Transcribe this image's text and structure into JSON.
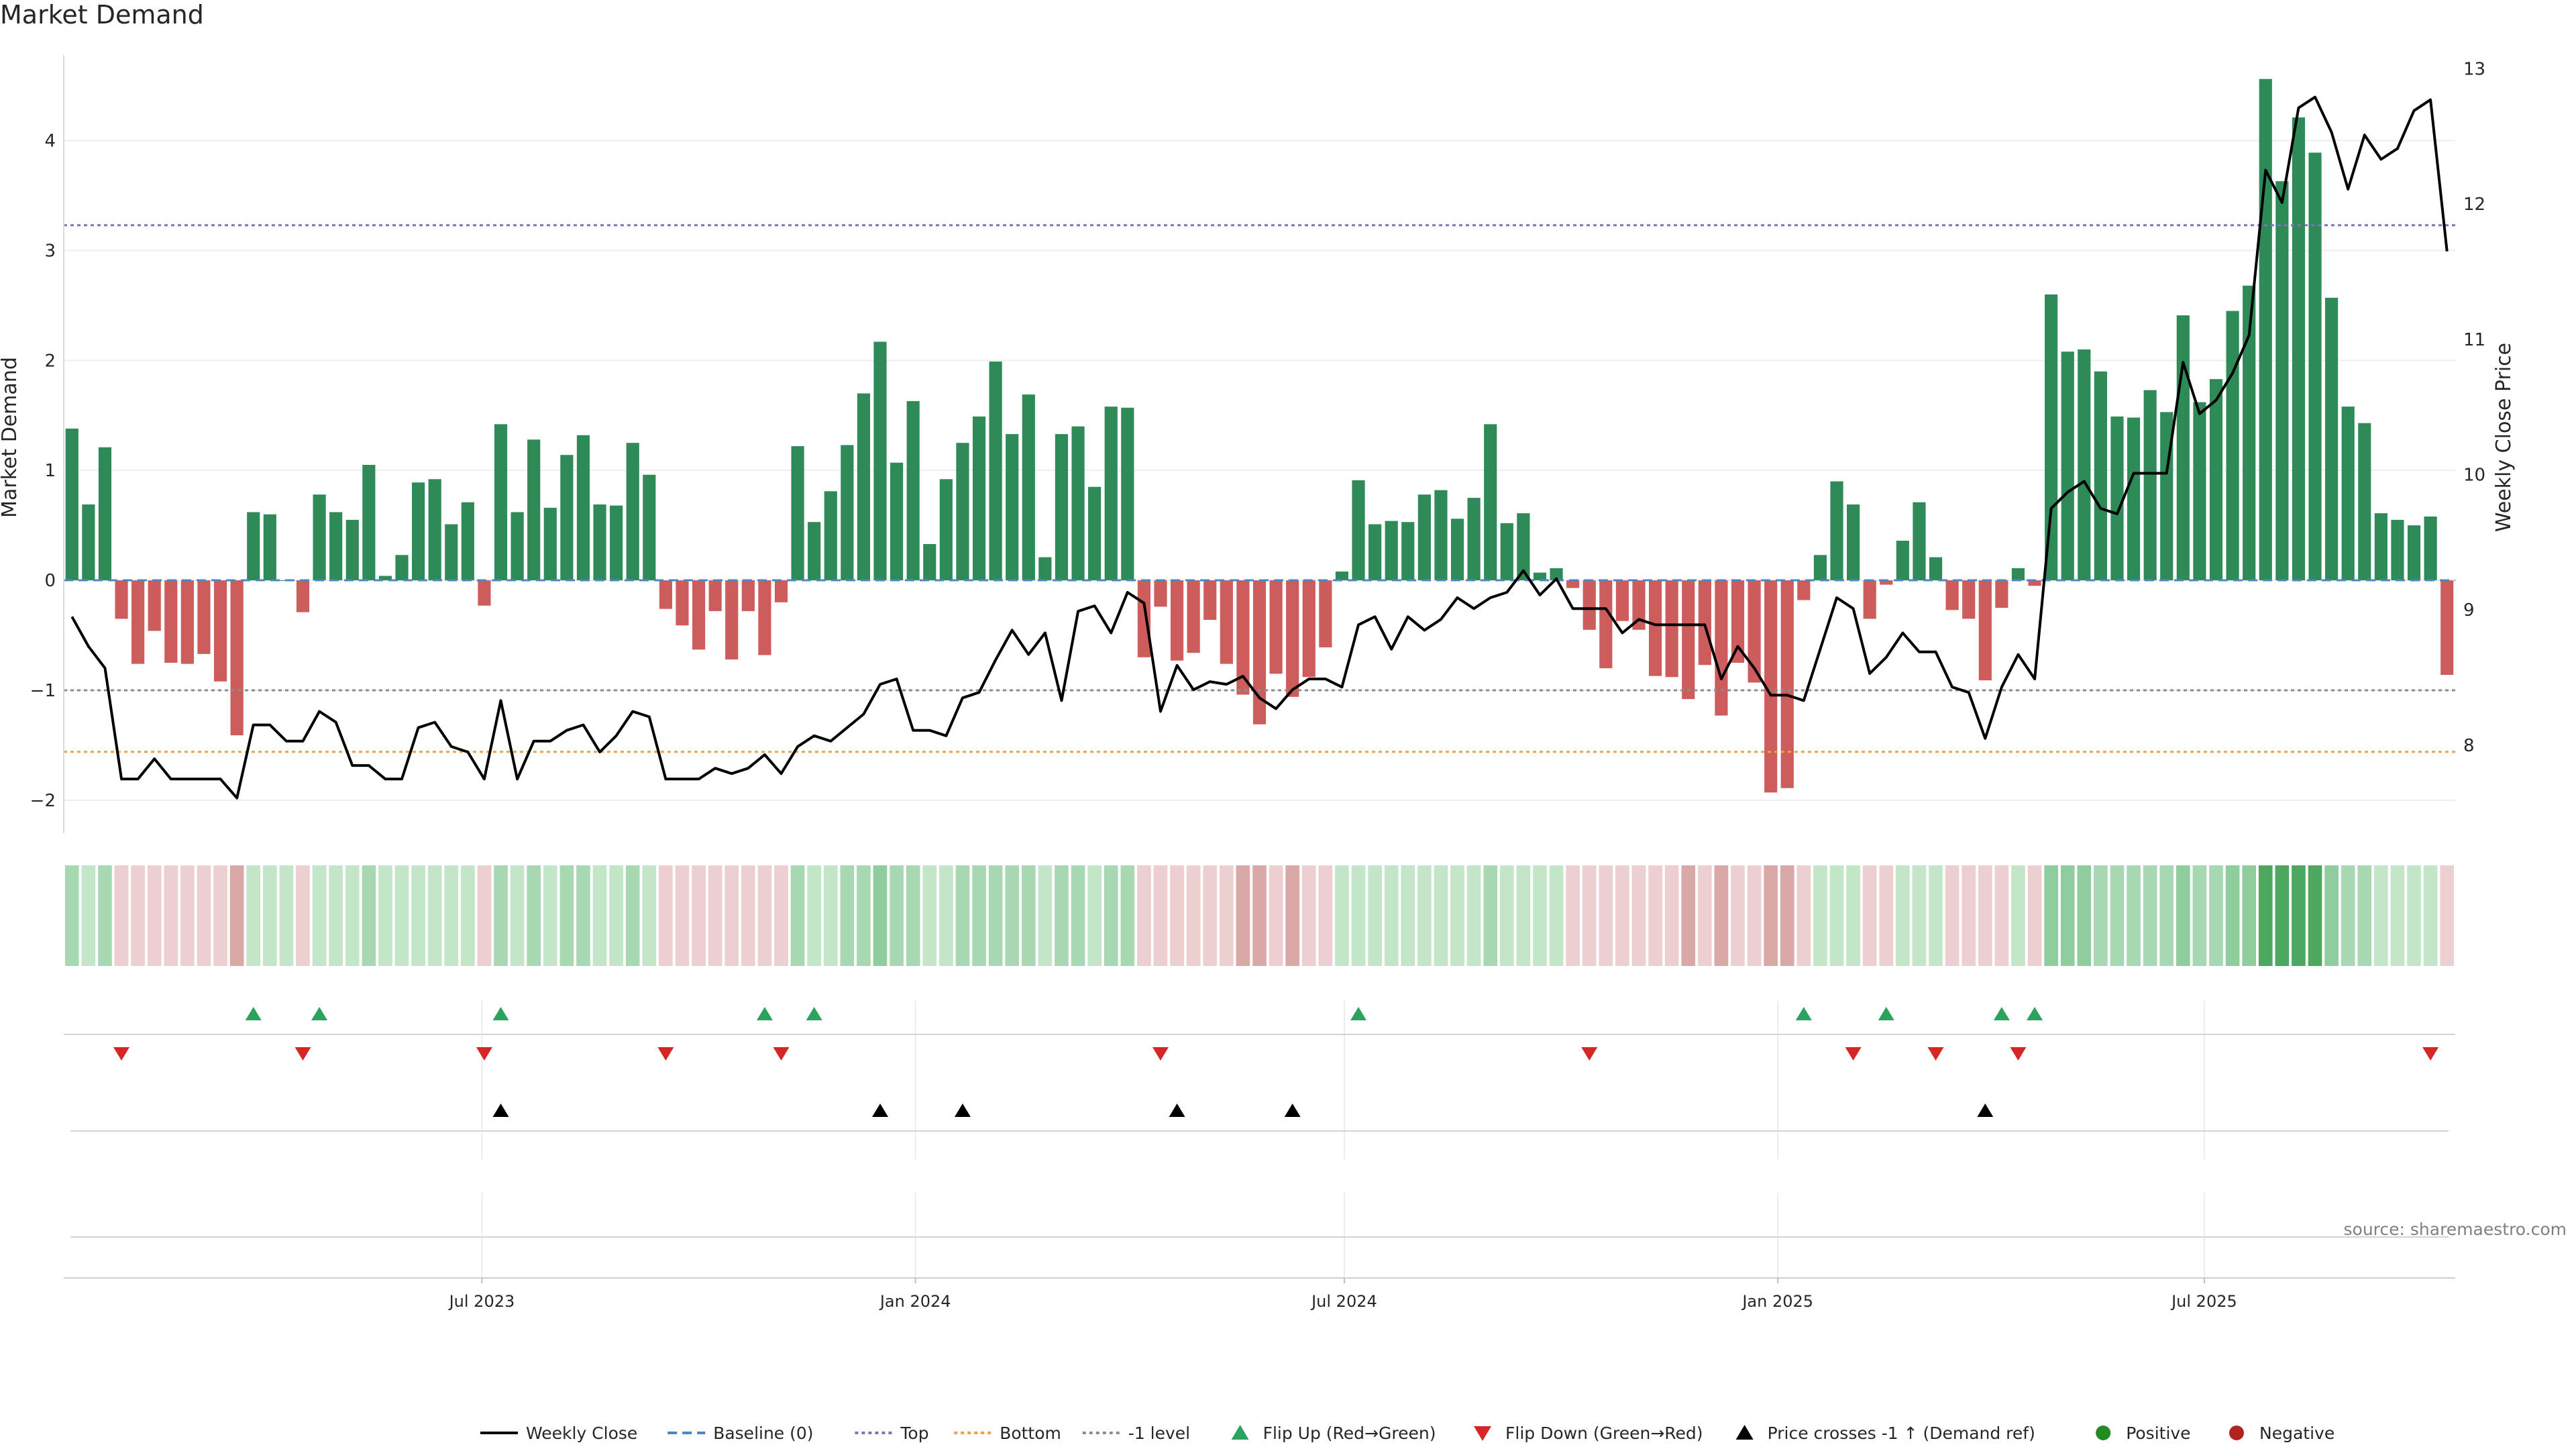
{
  "chart_data": {
    "type": "bar",
    "title": "Market Demand",
    "ylabel": "Market Demand",
    "y2label": "Weekly Close Price",
    "ylim": [
      -2.3,
      4.9
    ],
    "y2lim": [
      7.35,
      13.2
    ],
    "yticks": [
      -2,
      -1,
      0,
      1,
      2,
      3,
      4
    ],
    "y2ticks": [
      8,
      9,
      10,
      11,
      12,
      13
    ],
    "x_start": "2023-01-08",
    "x_interval_days": 7,
    "x_ticks": [
      {
        "label": "Jul 2023",
        "date": "2023-07-01"
      },
      {
        "label": "Jan 2024",
        "date": "2024-01-01"
      },
      {
        "label": "Jul 2024",
        "date": "2024-07-01"
      },
      {
        "label": "Jan 2025",
        "date": "2025-01-01"
      },
      {
        "label": "Jul 2025",
        "date": "2025-07-01"
      }
    ],
    "reference_lines": {
      "top": 3.23,
      "bottom": -1.56,
      "minus_one": -1.0,
      "baseline": 0
    },
    "demand": [
      1.38,
      0.69,
      1.21,
      -0.35,
      -0.76,
      -0.46,
      -0.75,
      -0.76,
      -0.67,
      -0.92,
      -1.41,
      0.62,
      0.6,
      0.0,
      -0.29,
      0.78,
      0.62,
      0.55,
      1.05,
      0.04,
      0.23,
      0.89,
      0.92,
      0.51,
      0.71,
      -0.23,
      1.42,
      0.62,
      1.28,
      0.66,
      1.14,
      1.32,
      0.69,
      0.68,
      1.25,
      0.96,
      -0.26,
      -0.41,
      -0.63,
      -0.28,
      -0.72,
      -0.28,
      -0.68,
      -0.2,
      1.22,
      0.53,
      0.81,
      1.23,
      1.7,
      2.17,
      1.07,
      1.63,
      0.33,
      0.92,
      1.25,
      1.49,
      1.99,
      1.33,
      1.69,
      0.21,
      1.33,
      1.4,
      0.85,
      1.58,
      1.57,
      -0.7,
      -0.24,
      -0.73,
      -0.66,
      -0.36,
      -0.76,
      -1.04,
      -1.31,
      -0.85,
      -1.06,
      -0.88,
      -0.61,
      0.08,
      0.91,
      0.51,
      0.54,
      0.53,
      0.78,
      0.82,
      0.56,
      0.75,
      1.42,
      0.52,
      0.61,
      0.07,
      0.11,
      -0.07,
      -0.45,
      -0.8,
      -0.37,
      -0.45,
      -0.87,
      -0.88,
      -1.08,
      -0.77,
      -1.23,
      -0.75,
      -0.93,
      -1.93,
      -1.89,
      -0.18,
      0.23,
      0.9,
      0.69,
      -0.35,
      -0.04,
      0.36,
      0.71,
      0.21,
      -0.27,
      -0.35,
      -0.91,
      -0.25,
      0.11,
      -0.05,
      2.6,
      2.08,
      2.1,
      1.9,
      1.49,
      1.48,
      1.73,
      1.53,
      2.41,
      1.62,
      1.83,
      2.45,
      2.68,
      4.56,
      3.63,
      4.21,
      3.89,
      2.57,
      1.58,
      1.43,
      0.61,
      0.55,
      0.5,
      0.58,
      -0.86
    ],
    "close": [
      8.95,
      8.73,
      8.57,
      7.75,
      7.75,
      7.9,
      7.75,
      7.75,
      7.75,
      7.75,
      7.61,
      8.15,
      8.15,
      8.03,
      8.03,
      8.25,
      8.17,
      7.85,
      7.85,
      7.75,
      7.75,
      8.13,
      8.17,
      7.99,
      7.95,
      7.75,
      8.33,
      7.75,
      8.03,
      8.03,
      8.11,
      8.15,
      7.95,
      8.07,
      8.25,
      8.21,
      7.75,
      7.75,
      7.75,
      7.83,
      7.79,
      7.83,
      7.93,
      7.79,
      7.99,
      8.07,
      8.03,
      8.13,
      8.23,
      8.45,
      8.49,
      8.11,
      8.11,
      8.07,
      8.35,
      8.39,
      8.63,
      8.85,
      8.67,
      8.83,
      8.33,
      8.99,
      9.03,
      8.83,
      9.13,
      9.05,
      8.25,
      8.59,
      8.41,
      8.47,
      8.45,
      8.51,
      8.35,
      8.27,
      8.41,
      8.49,
      8.49,
      8.43,
      8.89,
      8.95,
      8.71,
      8.95,
      8.85,
      8.93,
      9.09,
      9.01,
      9.09,
      9.13,
      9.29,
      9.11,
      9.23,
      9.01,
      9.01,
      9.01,
      8.83,
      8.93,
      8.89,
      8.89,
      8.89,
      8.89,
      8.49,
      8.73,
      8.57,
      8.37,
      8.37,
      8.33,
      8.71,
      9.09,
      9.01,
      8.53,
      8.65,
      8.83,
      8.69,
      8.69,
      8.43,
      8.39,
      8.05,
      8.43,
      8.67,
      8.49,
      9.75,
      9.87,
      9.95,
      9.75,
      9.71,
      10.01,
      10.01,
      10.01,
      10.83,
      10.45,
      10.55,
      10.75,
      11.03,
      12.25,
      12.01,
      12.71,
      12.79,
      12.53,
      12.11,
      12.51,
      12.33,
      12.41,
      12.69,
      12.77,
      11.65
    ],
    "color_strip": {
      "levels": [
        "-3",
        "-2",
        "-1",
        "1",
        "2",
        "3",
        "4"
      ],
      "colors": [
        "#c18a8a",
        "#dba8a8",
        "#eecfcf",
        "#c3e6c8",
        "#a8d8b1",
        "#8fcc9e",
        "#4ba85e"
      ]
    },
    "flip_up_weeks": [
      11,
      15,
      26,
      42,
      45,
      78,
      105,
      110,
      117,
      119
    ],
    "flip_down_weeks": [
      3,
      14,
      25,
      36,
      43,
      66,
      92,
      108,
      113,
      118,
      143
    ],
    "price_cross_weeks": [
      26,
      49,
      54,
      67,
      74,
      116
    ],
    "colors": {
      "positive_bar": "#2e8b57",
      "negative_bar": "#cd5c5c",
      "close_line": "#000000",
      "top": "#7b75b8",
      "bottom": "#f0a04b",
      "minus_one": "#8c8c8c",
      "baseline": "#4a86c8",
      "flip_up": "#2ca25f",
      "flip_down": "#d62728",
      "cross": "#000000"
    }
  },
  "title": "Market Demand",
  "source": "source: sharemaestro.com",
  "legend": [
    {
      "label": "Weekly Close",
      "marker": "line",
      "color": "#000000"
    },
    {
      "label": "Baseline (0)",
      "marker": "dashed",
      "color": "#4a86c8"
    },
    {
      "label": "Top",
      "marker": "dotted",
      "color": "#7b75b8"
    },
    {
      "label": "Bottom",
      "marker": "dotted",
      "color": "#f0a04b"
    },
    {
      "label": "-1 level",
      "marker": "dotted",
      "color": "#8c8c8c"
    },
    {
      "label": "Flip Up (Red→Green)",
      "marker": "triangle-up",
      "color": "#2ca25f"
    },
    {
      "label": "Flip Down (Green→Red)",
      "marker": "triangle-down",
      "color": "#d62728"
    },
    {
      "label": "Price crosses -1 ↑ (Demand ref)",
      "marker": "triangle-up",
      "color": "#000000"
    },
    {
      "label": "Positive",
      "marker": "circle",
      "color": "#228b22"
    },
    {
      "label": "Negative",
      "marker": "circle",
      "color": "#b22222"
    }
  ]
}
